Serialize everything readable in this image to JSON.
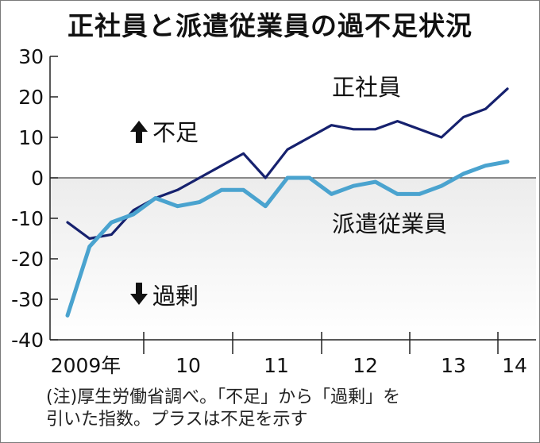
{
  "chart_data": {
    "type": "line",
    "title": "正社員と派遣従業員の過不足状況",
    "ylim": [
      -40,
      30
    ],
    "y_ticks": [
      "30",
      "20",
      "10",
      "0",
      "-10",
      "-20",
      "-30",
      "-40"
    ],
    "x_labels": [
      "2009年",
      "10",
      "11",
      "12",
      "13",
      "14"
    ],
    "annotation_up": "不足",
    "annotation_down": "過剰",
    "series": [
      {
        "name": "正社員",
        "color": "#16216e",
        "values": [
          -11,
          -15,
          -14,
          -8,
          -5,
          -3,
          0,
          3,
          6,
          0,
          7,
          10,
          13,
          12,
          12,
          14,
          12,
          10,
          15,
          17,
          22
        ]
      },
      {
        "name": "派遣従業員",
        "color": "#4aa3cf",
        "values": [
          -34,
          -17,
          -11,
          -9,
          -5,
          -7,
          -6,
          -3,
          -3,
          -7,
          0,
          0,
          -4,
          -2,
          -1,
          -4,
          -4,
          -2,
          1,
          3,
          4
        ]
      }
    ]
  },
  "notes": {
    "line1": "(注)厚生労働省調べ。「不足」から「過剰」を",
    "line2": "引いた指数。プラスは不足を示す"
  }
}
